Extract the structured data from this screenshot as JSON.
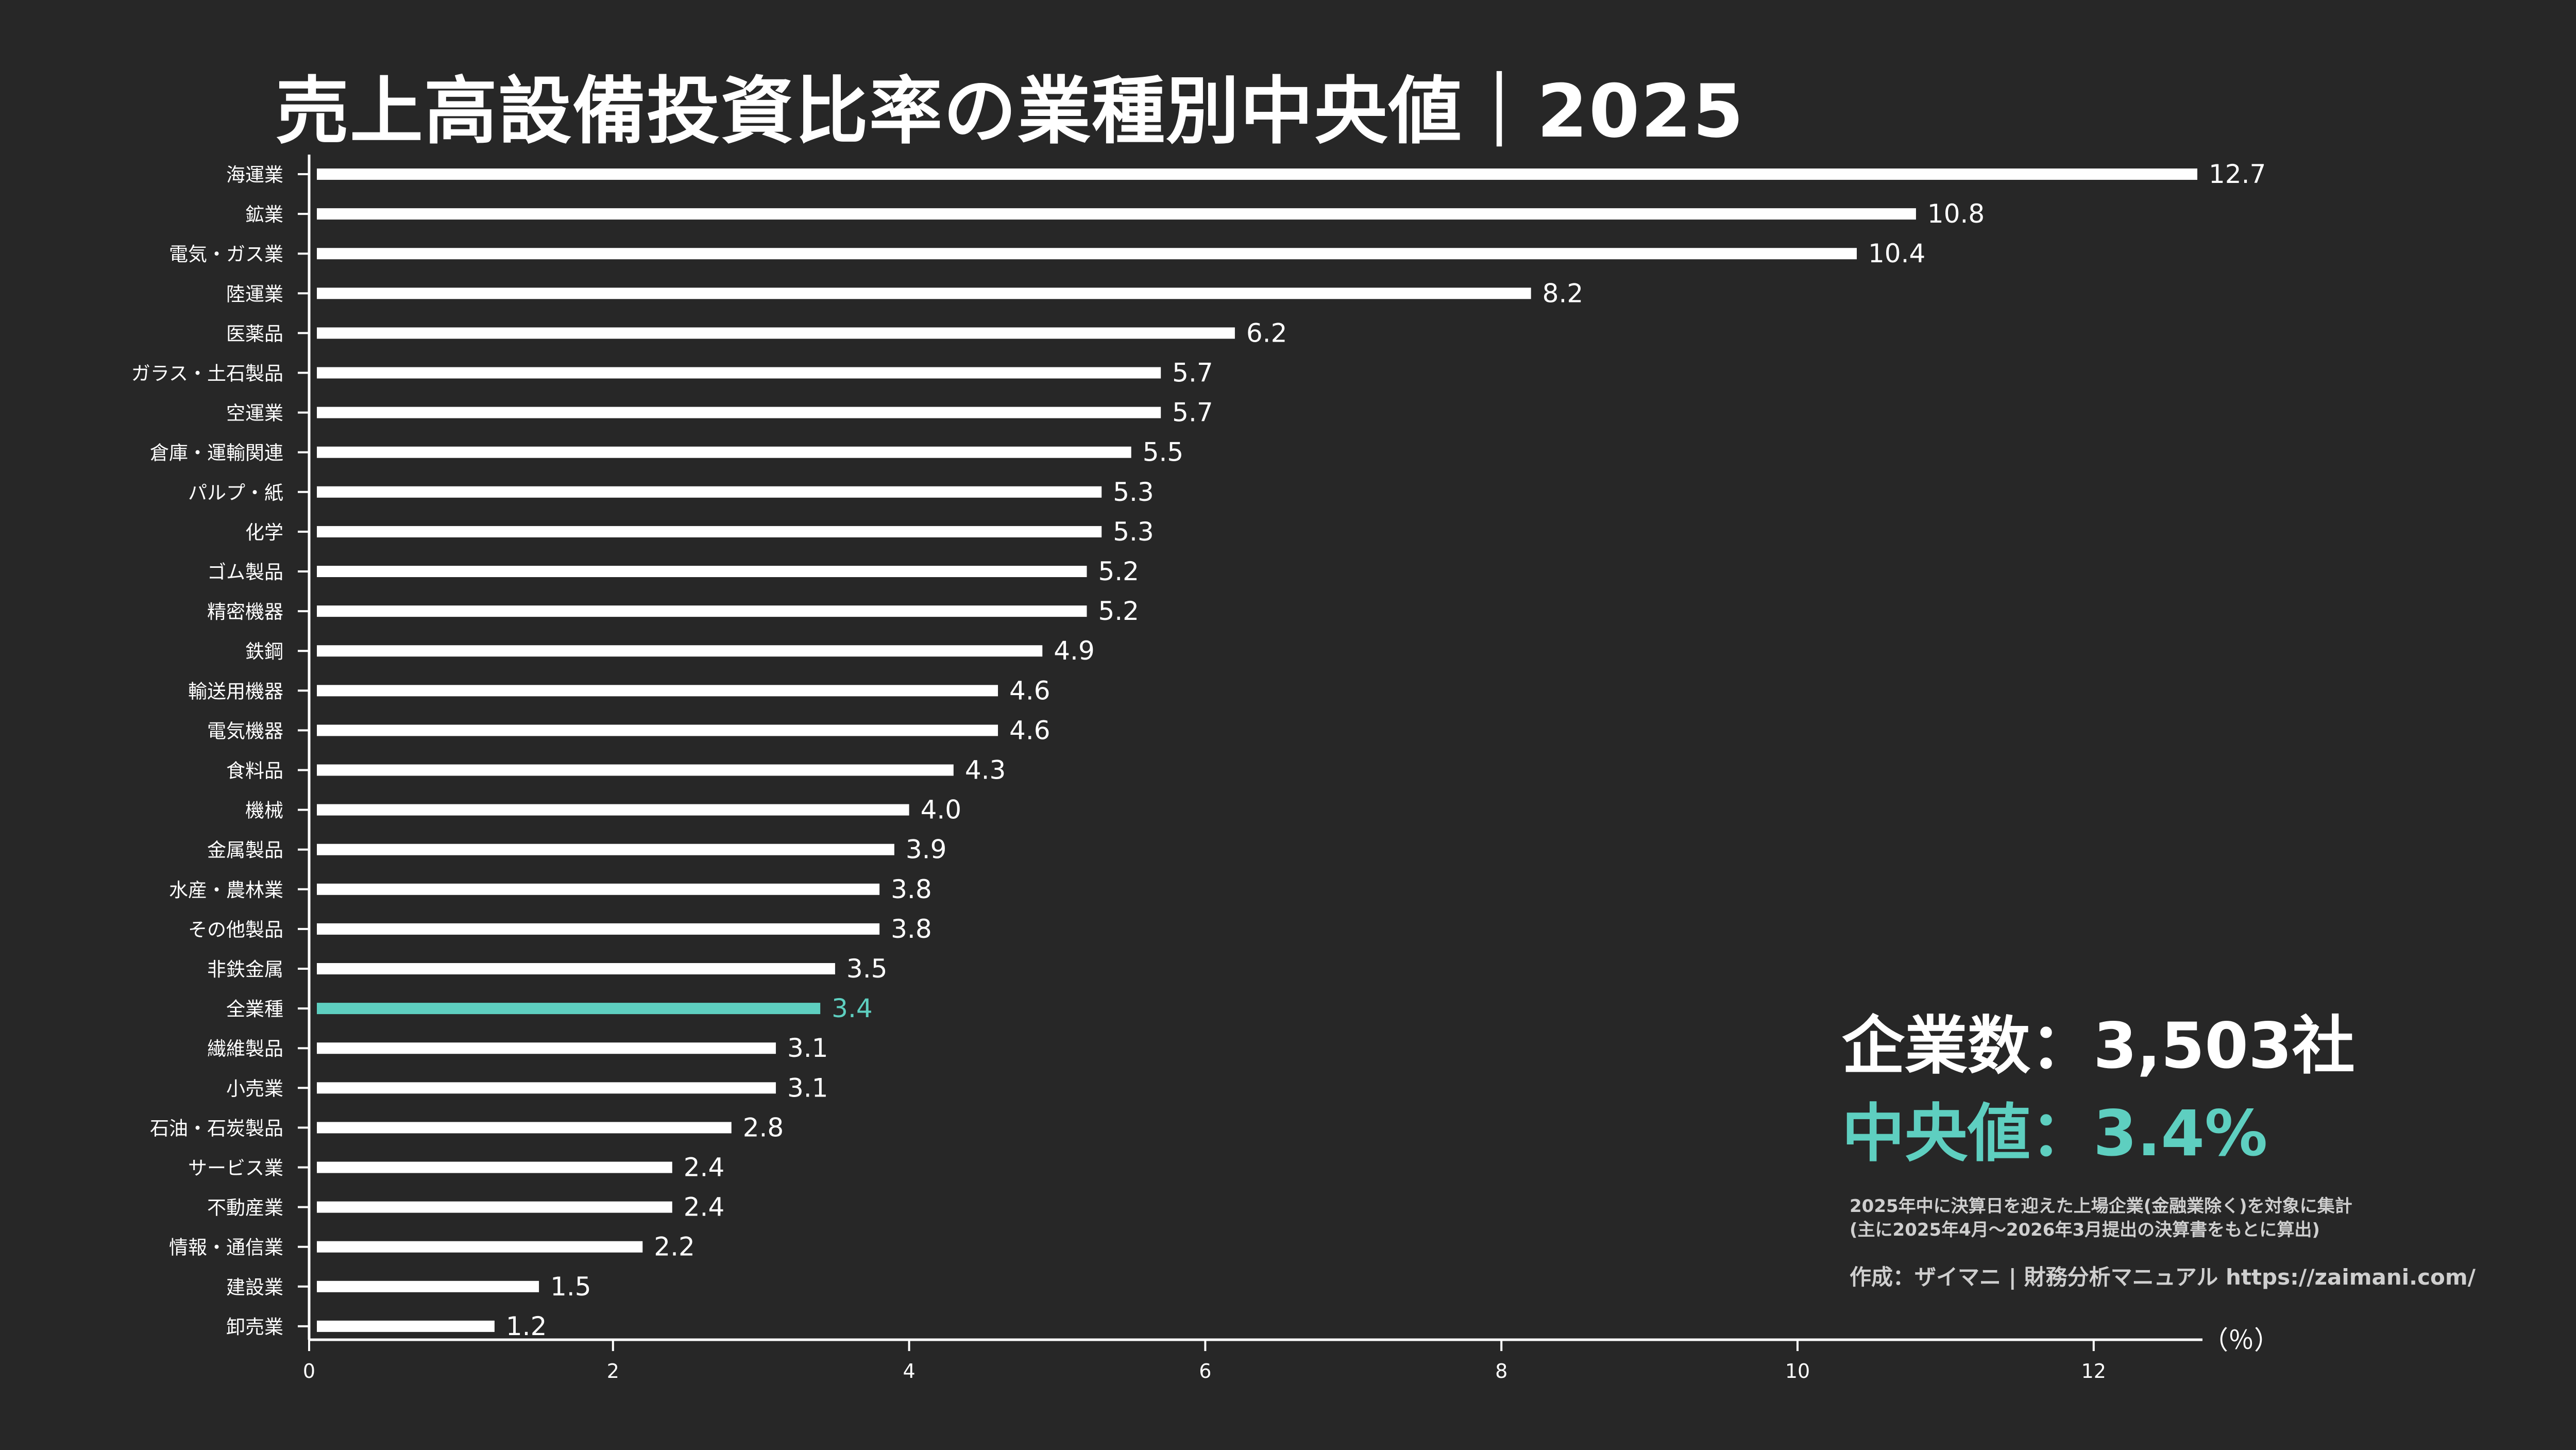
{
  "title": "売上高設備投資比率の業種別中央値｜2025",
  "stats": {
    "companies": "企業数：3,503社",
    "median": "中央値：3.4%"
  },
  "notes": [
    "2025年中に決算日を迎えた上場企業(金融業除く)を対象に集計",
    "(主に2025年4月～2026年3月提出の決算書をもとに算出)"
  ],
  "credit": "作成：ザイマニ | 財務分析マニュアル https://zaimani.com/",
  "colors": {
    "background": "#272727",
    "bar": "#ffffff",
    "highlight": "#5ecfc0"
  },
  "chart_data": {
    "type": "bar",
    "orientation": "horizontal",
    "categories": [
      "海運業",
      "鉱業",
      "電気・ガス業",
      "陸運業",
      "医薬品",
      "ガラス・土石製品",
      "空運業",
      "倉庫・運輸関連",
      "パルプ・紙",
      "化学",
      "ゴム製品",
      "精密機器",
      "鉄鋼",
      "輸送用機器",
      "電気機器",
      "食料品",
      "機械",
      "金属製品",
      "水産・農林業",
      "その他製品",
      "非鉄金属",
      "全業種",
      "繊維製品",
      "小売業",
      "石油・石炭製品",
      "サービス業",
      "不動産業",
      "情報・通信業",
      "建設業",
      "卸売業"
    ],
    "values": [
      12.7,
      10.8,
      10.4,
      8.2,
      6.2,
      5.7,
      5.7,
      5.5,
      5.3,
      5.3,
      5.2,
      5.2,
      4.9,
      4.6,
      4.6,
      4.3,
      4.0,
      3.9,
      3.8,
      3.8,
      3.5,
      3.4,
      3.1,
      3.1,
      2.8,
      2.4,
      2.4,
      2.2,
      1.5,
      1.2
    ],
    "value_labels": [
      "12.7",
      "10.8",
      "10.4",
      "8.2",
      "6.2",
      "5.7",
      "5.7",
      "5.5",
      "5.3",
      "5.3",
      "5.2",
      "5.2",
      "4.9",
      "4.6",
      "4.6",
      "4.3",
      "4.0",
      "3.9",
      "3.8",
      "3.8",
      "3.5",
      "3.4",
      "3.1",
      "3.1",
      "2.8",
      "2.4",
      "2.4",
      "2.2",
      "1.5",
      "1.2"
    ],
    "highlight_category": "全業種",
    "xlabel": "（％）",
    "xlim": [
      0,
      12.7
    ],
    "xticks": [
      "0",
      "2",
      "4",
      "6",
      "8",
      "10",
      "12"
    ],
    "grid": false,
    "legend": "none"
  }
}
